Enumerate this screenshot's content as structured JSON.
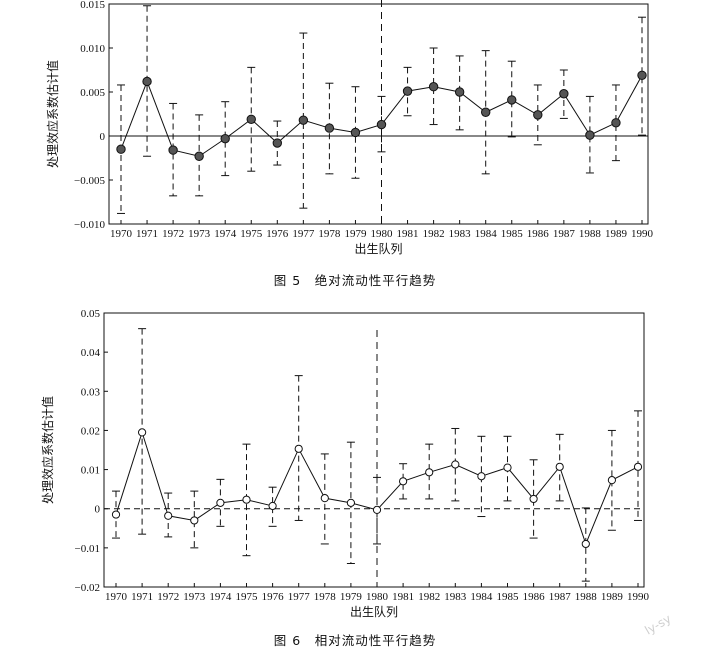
{
  "figure_captions": [
    "图 5　绝对流动性平行趋势",
    "图 6　相对流动性平行趋势"
  ],
  "watermark": "ly-sy",
  "chart_data": [
    {
      "type": "scatter",
      "title": "图 5　绝对流动性平行趋势",
      "xlabel": "出生队列",
      "ylabel": "处理效应系数估计值",
      "x": [
        "1970",
        "1971",
        "1972",
        "1973",
        "1974",
        "1975",
        "1976",
        "1977",
        "1978",
        "1979",
        "1980",
        "1981",
        "1982",
        "1983",
        "1984",
        "1985",
        "1986",
        "1987",
        "1988",
        "1989",
        "1990"
      ],
      "ylim": [
        -0.01,
        0.015
      ],
      "yticks": [
        -0.01,
        -0.005,
        0,
        0.005,
        0.01,
        0.015
      ],
      "ytick_labels": [
        "−0.010",
        "−0.005",
        "0",
        "0.005",
        "0.010",
        "0.015"
      ],
      "zero_line": "solid",
      "reference_x": "1980",
      "marker": "filled-circle",
      "series": [
        {
          "values": [
            -0.0015,
            0.0062,
            -0.0016,
            -0.0023,
            -0.0003,
            0.0019,
            -0.0008,
            0.0018,
            0.0009,
            0.0004,
            0.0013,
            0.0051,
            0.0056,
            0.005,
            0.0027,
            0.0041,
            0.0024,
            0.0048,
            0.0001,
            0.0015,
            0.0069
          ],
          "ci_low": [
            -0.0088,
            -0.0023,
            -0.0068,
            -0.0068,
            -0.0045,
            -0.004,
            -0.0033,
            -0.0082,
            -0.0043,
            -0.0048,
            -0.0018,
            0.0023,
            0.0013,
            0.0007,
            -0.0043,
            -0.0001,
            -0.001,
            0.002,
            -0.0042,
            -0.0028,
            0.0001
          ],
          "ci_high": [
            0.0058,
            0.0148,
            0.0037,
            0.0024,
            0.0039,
            0.0078,
            0.0017,
            0.0117,
            0.006,
            0.0056,
            0.0045,
            0.0078,
            0.01,
            0.0091,
            0.0097,
            0.0085,
            0.0058,
            0.0075,
            0.0045,
            0.0058,
            0.0135
          ]
        }
      ]
    },
    {
      "type": "scatter",
      "title": "图 6　相对流动性平行趋势",
      "xlabel": "出生队列",
      "ylabel": "处理效应系数估计值",
      "x": [
        "1970",
        "1971",
        "1972",
        "1973",
        "1974",
        "1975",
        "1976",
        "1977",
        "1978",
        "1979",
        "1980",
        "1981",
        "1982",
        "1983",
        "1984",
        "1985",
        "1986",
        "1987",
        "1988",
        "1989",
        "1990"
      ],
      "ylim": [
        -0.02,
        0.05
      ],
      "yticks": [
        -0.02,
        -0.01,
        0,
        0.01,
        0.02,
        0.03,
        0.04,
        0.05
      ],
      "ytick_labels": [
        "−0.02",
        "−0.01",
        "0",
        "0.01",
        "0.02",
        "0.03",
        "0.04",
        "0.05"
      ],
      "zero_line": "dashed",
      "reference_x": "1980",
      "marker": "hollow-circle",
      "series": [
        {
          "values": [
            -0.0015,
            0.0195,
            -0.0018,
            -0.003,
            0.0015,
            0.0023,
            0.0007,
            0.0153,
            0.0027,
            0.0015,
            -0.0003,
            0.007,
            0.0093,
            0.0113,
            0.0083,
            0.0105,
            0.0025,
            0.0107,
            -0.009,
            0.0073,
            0.0107
          ],
          "ci_low": [
            -0.0075,
            -0.0065,
            -0.0072,
            -0.01,
            -0.0045,
            -0.012,
            -0.0045,
            -0.003,
            -0.009,
            -0.014,
            -0.009,
            0.0025,
            0.0025,
            0.002,
            -0.002,
            0.002,
            -0.0075,
            0.002,
            -0.0185,
            -0.0055,
            -0.003
          ],
          "ci_high": [
            0.0045,
            0.046,
            0.004,
            0.0045,
            0.0075,
            0.0165,
            0.0055,
            0.034,
            0.014,
            0.017,
            0.008,
            0.0115,
            0.0165,
            0.0205,
            0.0185,
            0.0185,
            0.0125,
            0.019,
            0.0002,
            0.02,
            0.025
          ]
        }
      ]
    }
  ]
}
